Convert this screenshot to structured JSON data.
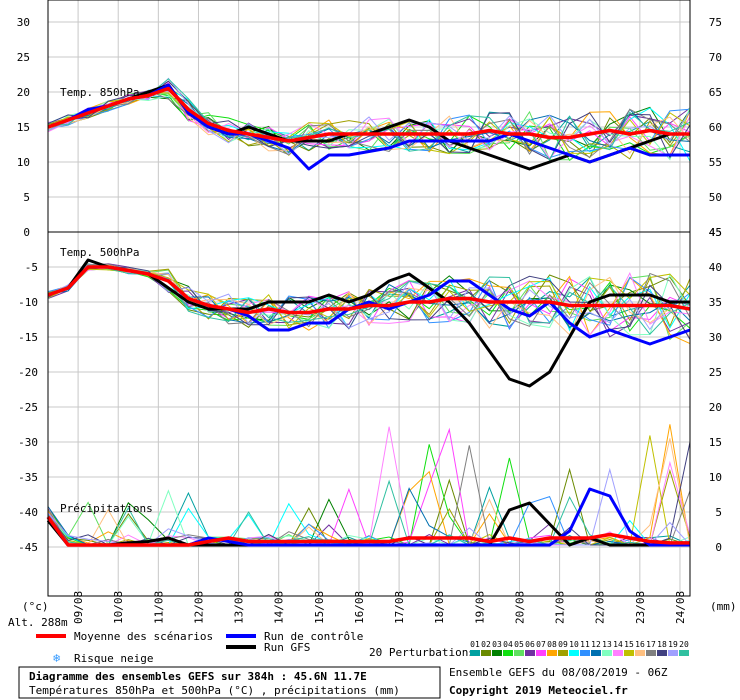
{
  "chart_data": {
    "type": "line",
    "dates": [
      "09/08",
      "10/08",
      "11/08",
      "12/08",
      "13/08",
      "14/08",
      "15/08",
      "16/08",
      "17/08",
      "18/08",
      "19/08",
      "20/08",
      "21/08",
      "22/08",
      "23/08",
      "24/08"
    ],
    "panels": {
      "t850": {
        "label": "Temp. 850hPa",
        "left_ticks": [
          "30",
          "25",
          "20",
          "15",
          "10",
          "5",
          "0"
        ],
        "right_ticks": [
          "75",
          "70",
          "65",
          "60",
          "55",
          "50",
          "45"
        ],
        "ylim": [
          0,
          30
        ]
      },
      "t500": {
        "label": "Temp. 500hPa",
        "left_ticks": [
          "-5",
          "-10",
          "-15",
          "-20",
          "-25",
          "-30",
          "-35",
          "-40",
          "-45"
        ],
        "right_ticks": [
          "45",
          "40",
          "35",
          "30",
          "25",
          "20",
          "15",
          "10",
          "5",
          "0"
        ],
        "ylim": [
          -45,
          -5
        ]
      },
      "precip": {
        "label": "Précipitations",
        "unit_left": "(°c)",
        "unit_right": "(mm)",
        "ylim": [
          0,
          45
        ]
      }
    },
    "altitude": "Alt. 288m",
    "series": [
      {
        "name": "Moyenne des scénarios",
        "color": "#ff0000",
        "t850": [
          15,
          16,
          17,
          18,
          19,
          19.5,
          20.5,
          17.5,
          15.5,
          14.5,
          14,
          13.5,
          13,
          13.5,
          14,
          14,
          14,
          14,
          14,
          14,
          14,
          14,
          14.5,
          14,
          14,
          13.5,
          13.5,
          14,
          14.5,
          14,
          14.5,
          14,
          14
        ],
        "t500": [
          -9,
          -8,
          -5,
          -5,
          -5.5,
          -6,
          -7,
          -9.5,
          -10.5,
          -11,
          -11.5,
          -11,
          -11.5,
          -11.5,
          -11,
          -11,
          -10.5,
          -10.5,
          -10,
          -10,
          -9.5,
          -9.5,
          -10,
          -10,
          -10,
          -10,
          -10.5,
          -10.5,
          -10.5,
          -10.5,
          -10.5,
          -10.5,
          -11
        ],
        "precip": [
          4,
          0,
          0,
          0,
          0,
          0,
          0,
          0,
          0.5,
          1,
          0.5,
          0.5,
          0.5,
          0.5,
          0.5,
          0.5,
          0.5,
          0.5,
          1,
          1,
          1,
          1,
          0.5,
          1,
          0.5,
          1,
          1,
          1,
          1.5,
          1,
          0.5,
          0.3,
          0.3
        ]
      },
      {
        "name": "Run de contrôle",
        "color": "#0000ff",
        "t850": [
          15,
          16,
          17.5,
          18,
          19,
          19.5,
          21,
          17,
          15,
          14,
          14,
          13,
          12,
          9,
          11,
          11,
          11.5,
          12,
          13,
          13,
          13,
          13,
          13,
          14,
          13,
          12,
          11,
          10,
          11,
          12,
          11,
          11,
          11
        ],
        "t500": [
          -9,
          -8,
          -5,
          -5,
          -5.5,
          -6,
          -7,
          -9.5,
          -10.5,
          -11,
          -12,
          -14,
          -14,
          -13,
          -13,
          -11,
          -10,
          -11,
          -10,
          -9,
          -7,
          -7,
          -9,
          -11,
          -12,
          -10,
          -13,
          -15,
          -14,
          -15,
          -16,
          -15,
          -14
        ],
        "precip": [
          4,
          0,
          0,
          0,
          0,
          0,
          0,
          0,
          1,
          0.5,
          0,
          0,
          0,
          0,
          0,
          0,
          0,
          0,
          0,
          0,
          0,
          0,
          0,
          0,
          0,
          0,
          2,
          8,
          7,
          2,
          0,
          0,
          0
        ]
      },
      {
        "name": "Run GFS",
        "color": "#000000",
        "t850": [
          15,
          16,
          17,
          18,
          19,
          20,
          21,
          17,
          15,
          14,
          15,
          14,
          13,
          13,
          13,
          14,
          14,
          15,
          16,
          15,
          13,
          12,
          11,
          10,
          9,
          10,
          11,
          10,
          11,
          12,
          13,
          14,
          14
        ],
        "t500": [
          -9,
          -8,
          -4,
          -5,
          -5.5,
          -6,
          -8,
          -10,
          -11,
          -11,
          -11,
          -10,
          -10,
          -10,
          -9,
          -10,
          -9,
          -7,
          -6,
          -8,
          -10,
          -13,
          -17,
          -21,
          -22,
          -20,
          -15,
          -10,
          -9,
          -9,
          -9,
          -10,
          -10
        ],
        "precip": [
          3.5,
          0,
          0,
          0,
          0.3,
          0.5,
          1,
          0,
          0,
          0,
          0,
          0,
          0,
          0,
          0,
          0,
          0,
          0,
          0,
          0,
          0,
          0,
          0,
          5,
          6,
          3,
          0,
          1,
          0,
          0,
          0,
          0,
          0
        ]
      }
    ],
    "perturbation_colors": [
      "#00a0a0",
      "#6a8a00",
      "#008000",
      "#10e010",
      "#60e060",
      "#7030a0",
      "#ff40ff",
      "#ffa500",
      "#a0a000",
      "#00ffff",
      "#3090ff",
      "#0070b0",
      "#80ffc0",
      "#ff80ff",
      "#c0c000",
      "#ffc080",
      "#808080",
      "#404080",
      "#a0a0ff",
      "#30c0a0"
    ],
    "legend": {
      "mean": "Moyenne des scénarios",
      "control": "Run de contrôle",
      "gfs": "Run GFS",
      "snow": "Risque neige",
      "perturbations": "20 Perturbations",
      "pert_numbers": [
        "01",
        "02",
        "03",
        "04",
        "05",
        "06",
        "07",
        "08",
        "09",
        "10",
        "11",
        "12",
        "13",
        "14",
        "15",
        "16",
        "17",
        "18",
        "19",
        "20"
      ]
    },
    "footer": {
      "title": "Diagramme des ensembles GEFS sur 384h : 45.6N 11.7E",
      "subtitle": "Températures 850hPa et 500hPa (°C) , précipitations (mm)",
      "run": "Ensemble GEFS du 08/08/2019 - 06Z",
      "copyright": "Copyright 2019 Meteociel.fr"
    }
  }
}
